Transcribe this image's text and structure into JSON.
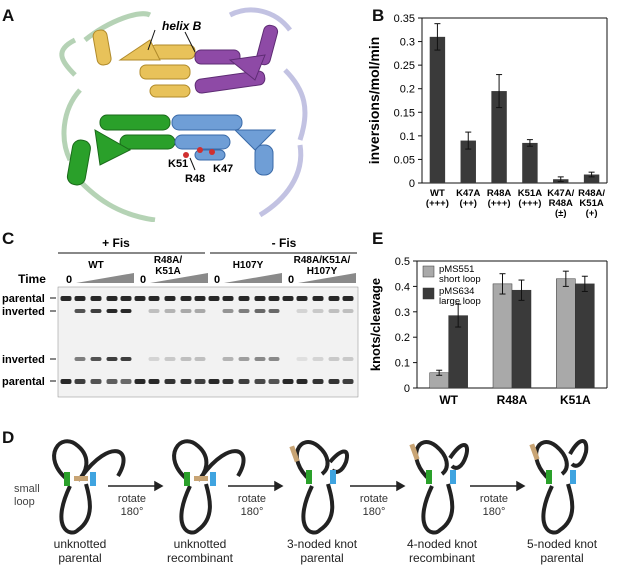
{
  "panels": {
    "a": {
      "label": "A",
      "helix_label": "helix B",
      "residues": [
        "K51",
        "R48",
        "K47"
      ]
    },
    "b": {
      "label": "B"
    },
    "c": {
      "label": "C",
      "plus_fis": "+ Fis",
      "minus_fis": "- Fis",
      "time_label": "Time",
      "zero": "0",
      "lanes": [
        "WT",
        "R48A/\nK51A",
        "H107Y",
        "R48A/K51A/\nH107Y"
      ],
      "bands": [
        "parental",
        "inverted",
        "inverted",
        "parental"
      ]
    },
    "d": {
      "label": "D",
      "small_loop": "small\nloop",
      "rotate": "rotate\n180°",
      "states": [
        "unknotted\nparental",
        "unknotted\nrecombinant",
        "3-noded knot\nparental",
        "4-noded knot\nrecombinant",
        "5-noded knot\nparental"
      ]
    },
    "e": {
      "label": "E"
    }
  },
  "colors": {
    "bar_dark": "#3a3a3a",
    "bar_light": "#a9a9a9",
    "green": "#2aa02a",
    "blue": "#3fa4e0",
    "tan": "#c8a474",
    "yellow": "#e8c25a",
    "purple": "#8e4aa6",
    "lightblue": "#6f9ed6"
  },
  "chart_data": [
    {
      "type": "bar",
      "panel": "B",
      "ylabel": "inversions/mol/min",
      "ylim": [
        0,
        0.35
      ],
      "yticks": [
        0,
        0.05,
        0.1,
        0.15,
        0.2,
        0.25,
        0.3,
        0.35
      ],
      "categories": [
        "WT\n(+++)",
        "K47A\n(++)",
        "R48A\n(+++)",
        "K51A\n(+++)",
        "K47A/\nR48A\n(±)",
        "R48A/\nK51A\n(+)"
      ],
      "values": [
        0.31,
        0.09,
        0.195,
        0.085,
        0.008,
        0.018
      ],
      "errors": [
        0.028,
        0.018,
        0.035,
        0.007,
        0.005,
        0.005
      ]
    },
    {
      "type": "bar",
      "panel": "E",
      "ylabel": "knots/cleavage",
      "ylim": [
        0,
        0.5
      ],
      "yticks": [
        0,
        0.1,
        0.2,
        0.3,
        0.4,
        0.5
      ],
      "categories": [
        "WT",
        "R48A",
        "K51A"
      ],
      "series": [
        {
          "name": "pMS551\nshort loop",
          "values": [
            0.06,
            0.41,
            0.43
          ],
          "errors": [
            0.01,
            0.04,
            0.03
          ]
        },
        {
          "name": "pMS634\nlarge loop",
          "values": [
            0.285,
            0.385,
            0.41
          ],
          "errors": [
            0.045,
            0.04,
            0.03
          ]
        }
      ]
    }
  ]
}
